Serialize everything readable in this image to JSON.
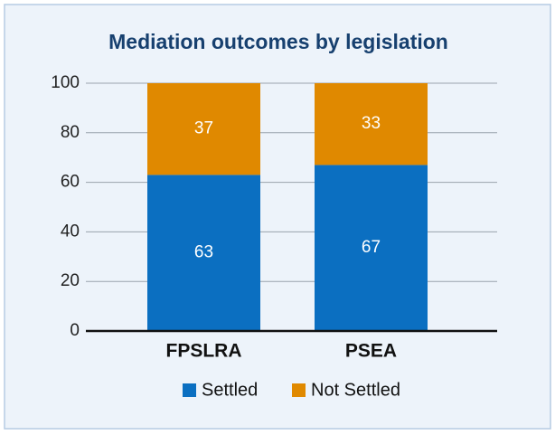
{
  "chart_data": {
    "type": "bar",
    "stacked": true,
    "title": "Mediation outcomes by legislation",
    "categories": [
      "FPSLRA",
      "PSEA"
    ],
    "series": [
      {
        "name": "Settled",
        "color": "#0b6fc1",
        "values": [
          63,
          67
        ]
      },
      {
        "name": "Not Settled",
        "color": "#e08900",
        "values": [
          37,
          33
        ]
      }
    ],
    "ylim": [
      0,
      100
    ],
    "yticks": [
      0,
      20,
      40,
      60,
      80,
      100
    ],
    "grid": true,
    "legend": "bottom"
  }
}
